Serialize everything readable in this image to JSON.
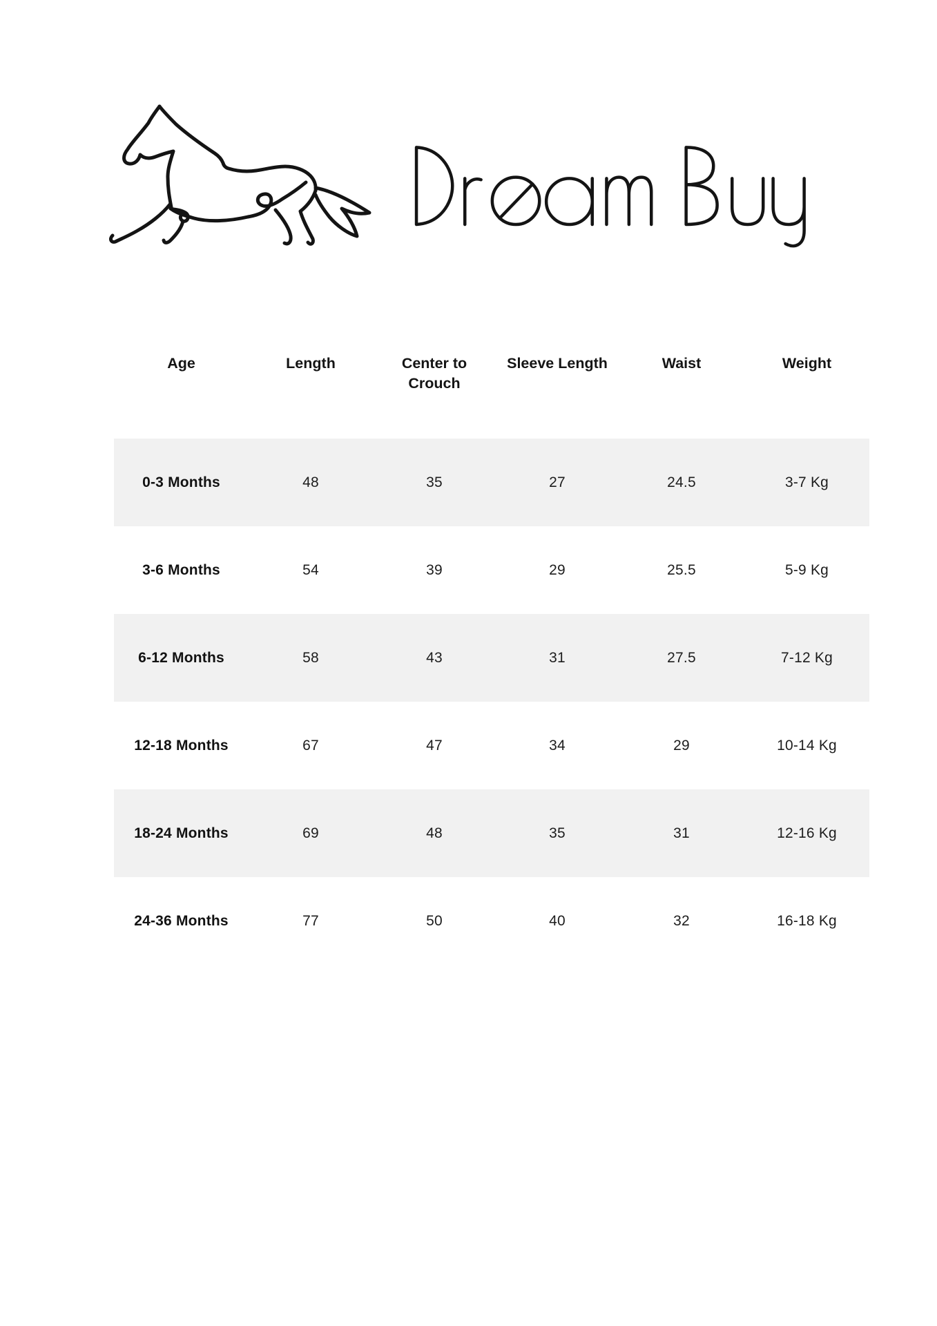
{
  "brand": {
    "name": "DreamBuy",
    "logo_alt": "running horse single-line drawing"
  },
  "size_chart": {
    "columns": [
      "Age",
      "Length",
      "Center to Crouch",
      "Sleeve Length",
      "Waist",
      "Weight"
    ],
    "column_keys": [
      "age",
      "length",
      "center_to_crouch",
      "sleeve_length",
      "waist",
      "weight"
    ],
    "rows": [
      {
        "age": "0-3 Months",
        "length": "48",
        "center_to_crouch": "35",
        "sleeve_length": "27",
        "waist": "24.5",
        "weight": "3-7 Kg"
      },
      {
        "age": "3-6 Months",
        "length": "54",
        "center_to_crouch": "39",
        "sleeve_length": "29",
        "waist": "25.5",
        "weight": "5-9 Kg"
      },
      {
        "age": "6-12 Months",
        "length": "58",
        "center_to_crouch": "43",
        "sleeve_length": "31",
        "waist": "27.5",
        "weight": "7-12 Kg"
      },
      {
        "age": "12-18 Months",
        "length": "67",
        "center_to_crouch": "47",
        "sleeve_length": "34",
        "waist": "29",
        "weight": "10-14 Kg"
      },
      {
        "age": "18-24 Months",
        "length": "69",
        "center_to_crouch": "48",
        "sleeve_length": "35",
        "waist": "31",
        "weight": "12-16 Kg"
      },
      {
        "age": "24-36 Months",
        "length": "77",
        "center_to_crouch": "50",
        "sleeve_length": "40",
        "waist": "32",
        "weight": "16-18 Kg"
      }
    ],
    "striped_row_color": "#f1f1f1",
    "text_color": "#1b1b1b"
  }
}
